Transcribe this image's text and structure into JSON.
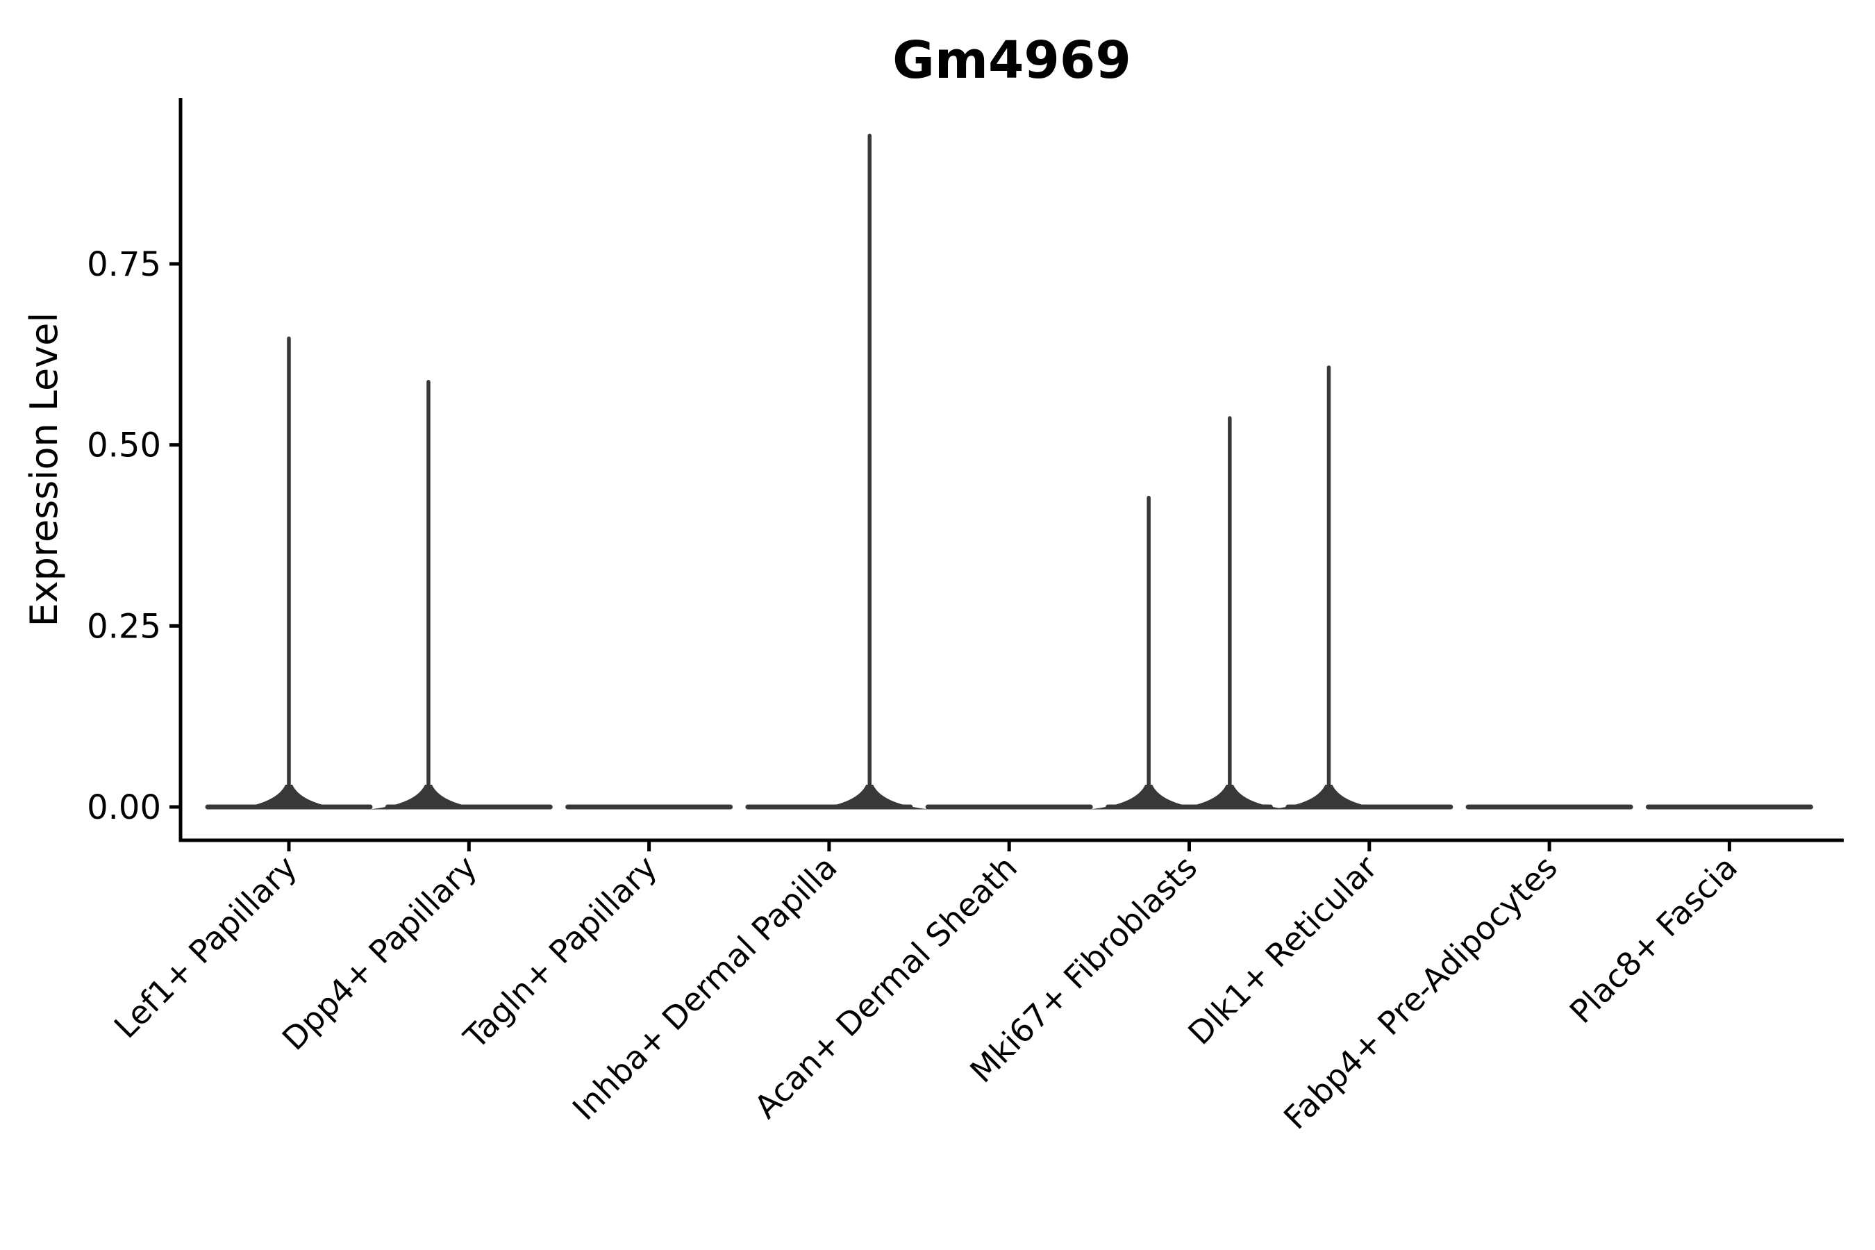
{
  "figure": {
    "title": "Gm4969",
    "background": "#ffffff"
  },
  "chart_data": {
    "type": "violin",
    "title": "Gm4969",
    "xlabel": "",
    "ylabel": "Expression Level",
    "ylim": [
      0,
      0.98
    ],
    "grid": false,
    "legend": "none",
    "yticks": {
      "values": [
        0.0,
        0.25,
        0.5,
        0.75
      ],
      "labels": [
        "0.00",
        "0.25",
        "0.50",
        "0.75"
      ]
    },
    "categories": [
      "Lef1+ Papillary",
      "Dpp4+ Papillary",
      "Tagln+ Papillary",
      "Inhba+ Dermal Papilla",
      "Acan+ Dermal Sheath",
      "Mki67+ Fibroblasts",
      "Dlk1+ Reticular",
      "Fabp4+ Pre-Adipocytes",
      "Plac8+ Fascia"
    ],
    "violins": [
      {
        "category": "Lef1+ Papillary",
        "base_max_width_frac": 0.9,
        "spikes": [
          {
            "offset_frac": 0.0,
            "max_value": 0.65
          }
        ]
      },
      {
        "category": "Dpp4+ Papillary",
        "base_max_width_frac": 0.9,
        "spikes": [
          {
            "offset_frac": -0.225,
            "max_value": 0.59
          }
        ]
      },
      {
        "category": "Tagln+ Papillary",
        "base_max_width_frac": 0.9,
        "spikes": []
      },
      {
        "category": "Inhba+ Dermal Papilla",
        "base_max_width_frac": 0.9,
        "spikes": [
          {
            "offset_frac": 0.225,
            "max_value": 0.93
          }
        ]
      },
      {
        "category": "Acan+ Dermal Sheath",
        "base_max_width_frac": 0.9,
        "spikes": []
      },
      {
        "category": "Mki67+ Fibroblasts",
        "base_max_width_frac": 0.9,
        "spikes": [
          {
            "offset_frac": -0.225,
            "max_value": 0.43
          },
          {
            "offset_frac": 0.225,
            "max_value": 0.54
          }
        ]
      },
      {
        "category": "Dlk1+ Reticular",
        "base_max_width_frac": 0.9,
        "spikes": [
          {
            "offset_frac": -0.225,
            "max_value": 0.61
          }
        ]
      },
      {
        "category": "Fabp4+ Pre-Adipocytes",
        "base_max_width_frac": 0.9,
        "spikes": []
      },
      {
        "category": "Plac8+ Fascia",
        "base_max_width_frac": 0.9,
        "spikes": []
      }
    ],
    "colors": {
      "violin_stroke": "#383838",
      "axis": "#000000",
      "text": "#000000",
      "background": "#ffffff"
    }
  }
}
